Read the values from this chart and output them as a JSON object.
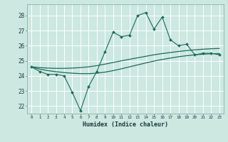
{
  "xlabel": "Humidex (Indice chaleur)",
  "bg_color": "#cce8e0",
  "grid_color": "#ffffff",
  "line_color": "#1a6b5a",
  "xlim": [
    -0.5,
    23.5
  ],
  "ylim": [
    21.5,
    28.75
  ],
  "yticks": [
    22,
    23,
    24,
    25,
    26,
    27,
    28
  ],
  "xticks": [
    0,
    1,
    2,
    3,
    4,
    5,
    6,
    7,
    8,
    9,
    10,
    11,
    12,
    13,
    14,
    15,
    16,
    17,
    18,
    19,
    20,
    21,
    22,
    23
  ],
  "zigzag_y": [
    24.6,
    24.3,
    24.1,
    24.1,
    24.0,
    22.9,
    21.7,
    23.3,
    24.3,
    25.6,
    26.9,
    26.6,
    26.7,
    28.0,
    28.2,
    27.1,
    27.9,
    26.4,
    26.0,
    26.1,
    25.4,
    25.5,
    25.5,
    25.4
  ],
  "line1_y": [
    24.6,
    24.55,
    24.52,
    24.5,
    24.5,
    24.52,
    24.55,
    24.6,
    24.68,
    24.78,
    24.89,
    25.0,
    25.1,
    25.2,
    25.3,
    25.4,
    25.48,
    25.55,
    25.62,
    25.68,
    25.73,
    25.77,
    25.8,
    25.82
  ],
  "line2_y": [
    24.6,
    24.45,
    24.35,
    24.28,
    24.22,
    24.18,
    24.15,
    24.15,
    24.18,
    24.25,
    24.35,
    24.47,
    24.6,
    24.73,
    24.86,
    24.98,
    25.09,
    25.18,
    25.27,
    25.34,
    25.4,
    25.44,
    25.47,
    25.48
  ]
}
